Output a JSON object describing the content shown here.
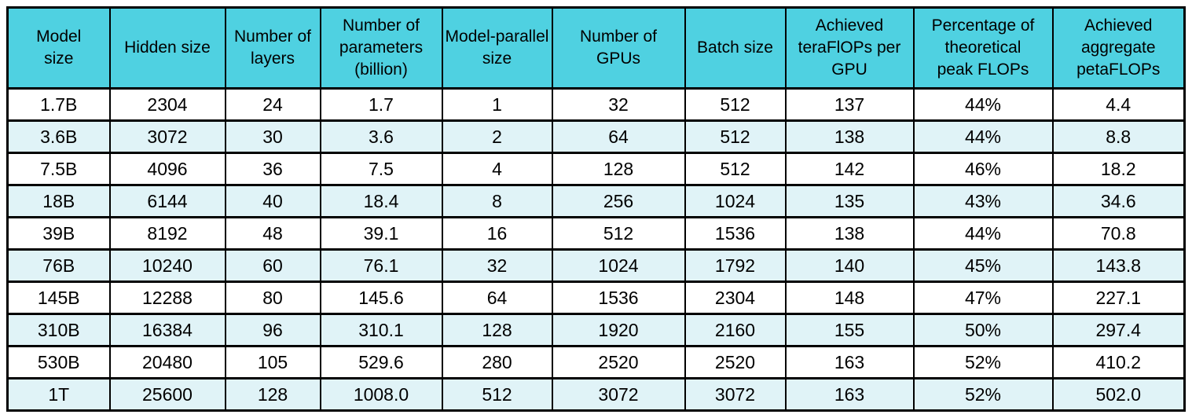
{
  "colors": {
    "header_bg": "#4FD1E1",
    "row_alt_bg": "#E0F3F7",
    "row_bg": "#FFFFFF",
    "border": "#000000",
    "text": "#000000"
  },
  "chart_data": {
    "type": "table",
    "columns": [
      "Model size",
      "Hidden size",
      "Number of layers",
      "Number of parameters (billion)",
      "Model-parallel size",
      "Number of GPUs",
      "Batch size",
      "Achieved teraFlOPs per GPU",
      "Percentage of theoretical peak FLOPs",
      "Achieved aggregate petaFLOPs"
    ],
    "columns_display": [
      "Model\nsize",
      "Hidden size",
      "Number of\nlayers",
      "Number of\nparameters\n(billion)",
      "Model-parallel\nsize",
      "Number of\nGPUs",
      "Batch size",
      "Achieved\nteraFlOPs per\nGPU",
      "Percentage of\ntheoretical\npeak FLOPs",
      "Achieved\naggregate\npetaFLOPs"
    ],
    "rows": [
      [
        "1.7B",
        "2304",
        "24",
        "1.7",
        "1",
        "32",
        "512",
        "137",
        "44%",
        "4.4"
      ],
      [
        "3.6B",
        "3072",
        "30",
        "3.6",
        "2",
        "64",
        "512",
        "138",
        "44%",
        "8.8"
      ],
      [
        "7.5B",
        "4096",
        "36",
        "7.5",
        "4",
        "128",
        "512",
        "142",
        "46%",
        "18.2"
      ],
      [
        "18B",
        "6144",
        "40",
        "18.4",
        "8",
        "256",
        "1024",
        "135",
        "43%",
        "34.6"
      ],
      [
        "39B",
        "8192",
        "48",
        "39.1",
        "16",
        "512",
        "1536",
        "138",
        "44%",
        "70.8"
      ],
      [
        "76B",
        "10240",
        "60",
        "76.1",
        "32",
        "1024",
        "1792",
        "140",
        "45%",
        "143.8"
      ],
      [
        "145B",
        "12288",
        "80",
        "145.6",
        "64",
        "1536",
        "2304",
        "148",
        "47%",
        "227.1"
      ],
      [
        "310B",
        "16384",
        "96",
        "310.1",
        "128",
        "1920",
        "2160",
        "155",
        "50%",
        "297.4"
      ],
      [
        "530B",
        "20480",
        "105",
        "529.6",
        "280",
        "2520",
        "2520",
        "163",
        "52%",
        "410.2"
      ],
      [
        "1T",
        "25600",
        "128",
        "1008.0",
        "512",
        "3072",
        "3072",
        "163",
        "52%",
        "502.0"
      ]
    ]
  }
}
